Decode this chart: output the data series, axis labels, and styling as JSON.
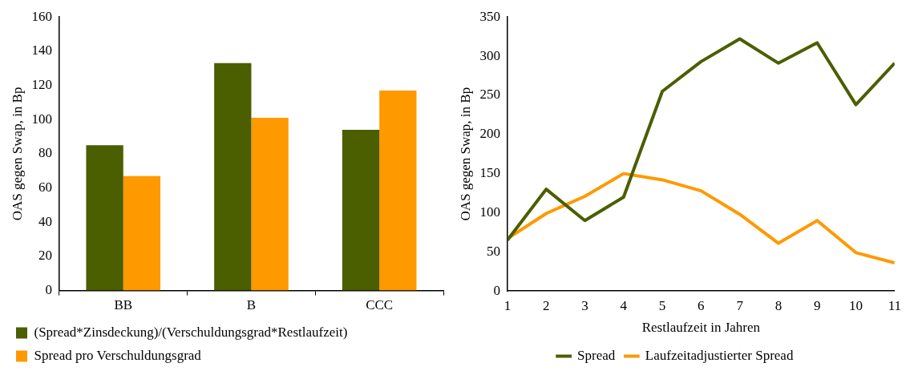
{
  "chart_data": [
    {
      "type": "bar",
      "ylabel": "OAS gegen Swap, in Bp",
      "categories": [
        "BB",
        "B",
        "CCC"
      ],
      "series": [
        {
          "name": "(Spread*Zinsdeckung)/(Verschuldungsgrad*Restlaufzeit)",
          "color": "#4b5e00",
          "values": [
            85,
            133,
            94
          ]
        },
        {
          "name": "Spread pro Verschuldungsgrad",
          "color": "#ff9900",
          "values": [
            67,
            101,
            117
          ]
        }
      ],
      "ylim": [
        0,
        160
      ],
      "yticks": [
        0,
        20,
        40,
        60,
        80,
        100,
        120,
        140,
        160
      ],
      "grid": false,
      "legend": "bottom"
    },
    {
      "type": "line",
      "xlabel": "Restlaufzeit in Jahren",
      "ylabel": "OAS gegen Swap, in Bp",
      "x": [
        1,
        2,
        3,
        4,
        5,
        6,
        7,
        8,
        9,
        10,
        11
      ],
      "series": [
        {
          "name": "Spread",
          "color": "#4b5e00",
          "values": [
            65,
            130,
            90,
            120,
            255,
            293,
            322,
            291,
            317,
            238,
            291
          ]
        },
        {
          "name": "Laufzeitadjustierter Spread",
          "color": "#ff9900",
          "values": [
            67,
            99,
            121,
            150,
            142,
            128,
            98,
            61,
            90,
            49,
            36
          ]
        }
      ],
      "xlim": [
        1,
        11
      ],
      "xticks": [
        1,
        2,
        3,
        4,
        5,
        6,
        7,
        8,
        9,
        10,
        11
      ],
      "ylim": [
        0,
        350
      ],
      "yticks": [
        0,
        50,
        100,
        150,
        200,
        250,
        300,
        350
      ],
      "grid": false,
      "legend": "bottom",
      "marker": "none",
      "line_style": "solid"
    }
  ]
}
